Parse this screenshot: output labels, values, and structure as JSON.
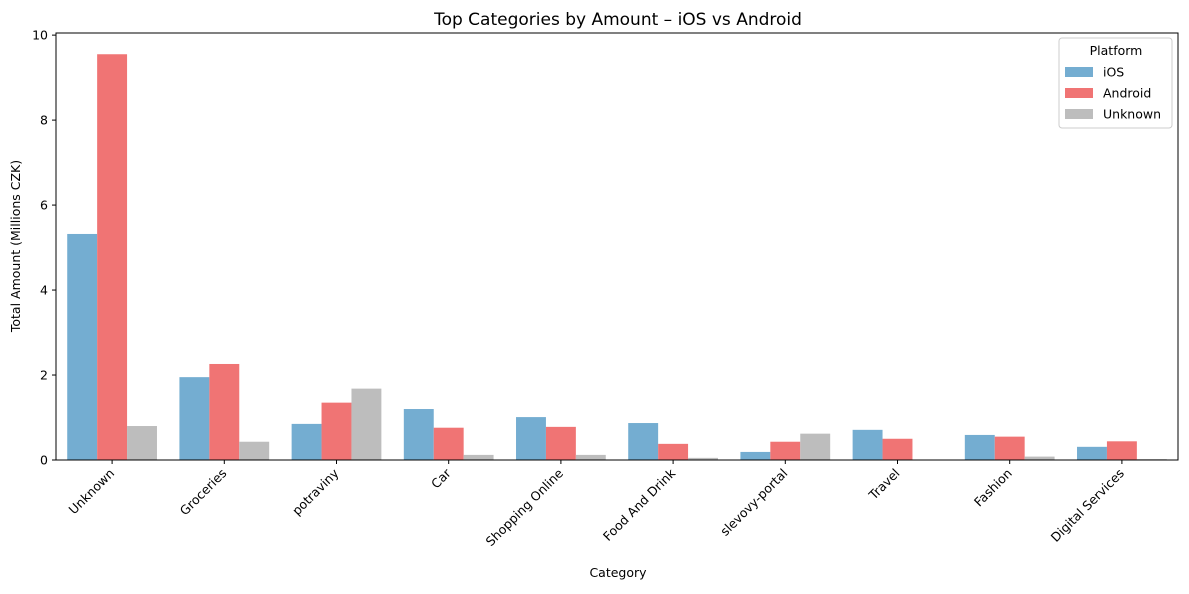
{
  "chart_data": {
    "type": "bar",
    "title": "Top Categories by Amount – iOS vs Android",
    "xlabel": "Category",
    "ylabel": "Total Amount (Millions CZK)",
    "ylim": [
      0,
      10.05
    ],
    "yticks": [
      0,
      2,
      4,
      6,
      8,
      10
    ],
    "grid": false,
    "categories": [
      "Unknown",
      "Groceries",
      "potraviny",
      "Car",
      "Shopping Online",
      "Food And Drink",
      "slevovy-portal",
      "Travel",
      "Fashion",
      "Digital Services"
    ],
    "series": [
      {
        "name": "iOS",
        "color": "#74add1",
        "values": [
          5.32,
          1.95,
          0.85,
          1.2,
          1.01,
          0.87,
          0.19,
          0.71,
          0.59,
          0.31
        ]
      },
      {
        "name": "Android",
        "color": "#f07474",
        "values": [
          9.55,
          2.26,
          1.35,
          0.76,
          0.78,
          0.38,
          0.43,
          0.5,
          0.55,
          0.44
        ]
      },
      {
        "name": "Unknown",
        "color": "#bdbdbd",
        "values": [
          0.8,
          0.43,
          1.68,
          0.12,
          0.12,
          0.05,
          0.62,
          0.0,
          0.08,
          0.02
        ]
      }
    ],
    "legend": {
      "title": "Platform",
      "position": "top-right"
    }
  }
}
